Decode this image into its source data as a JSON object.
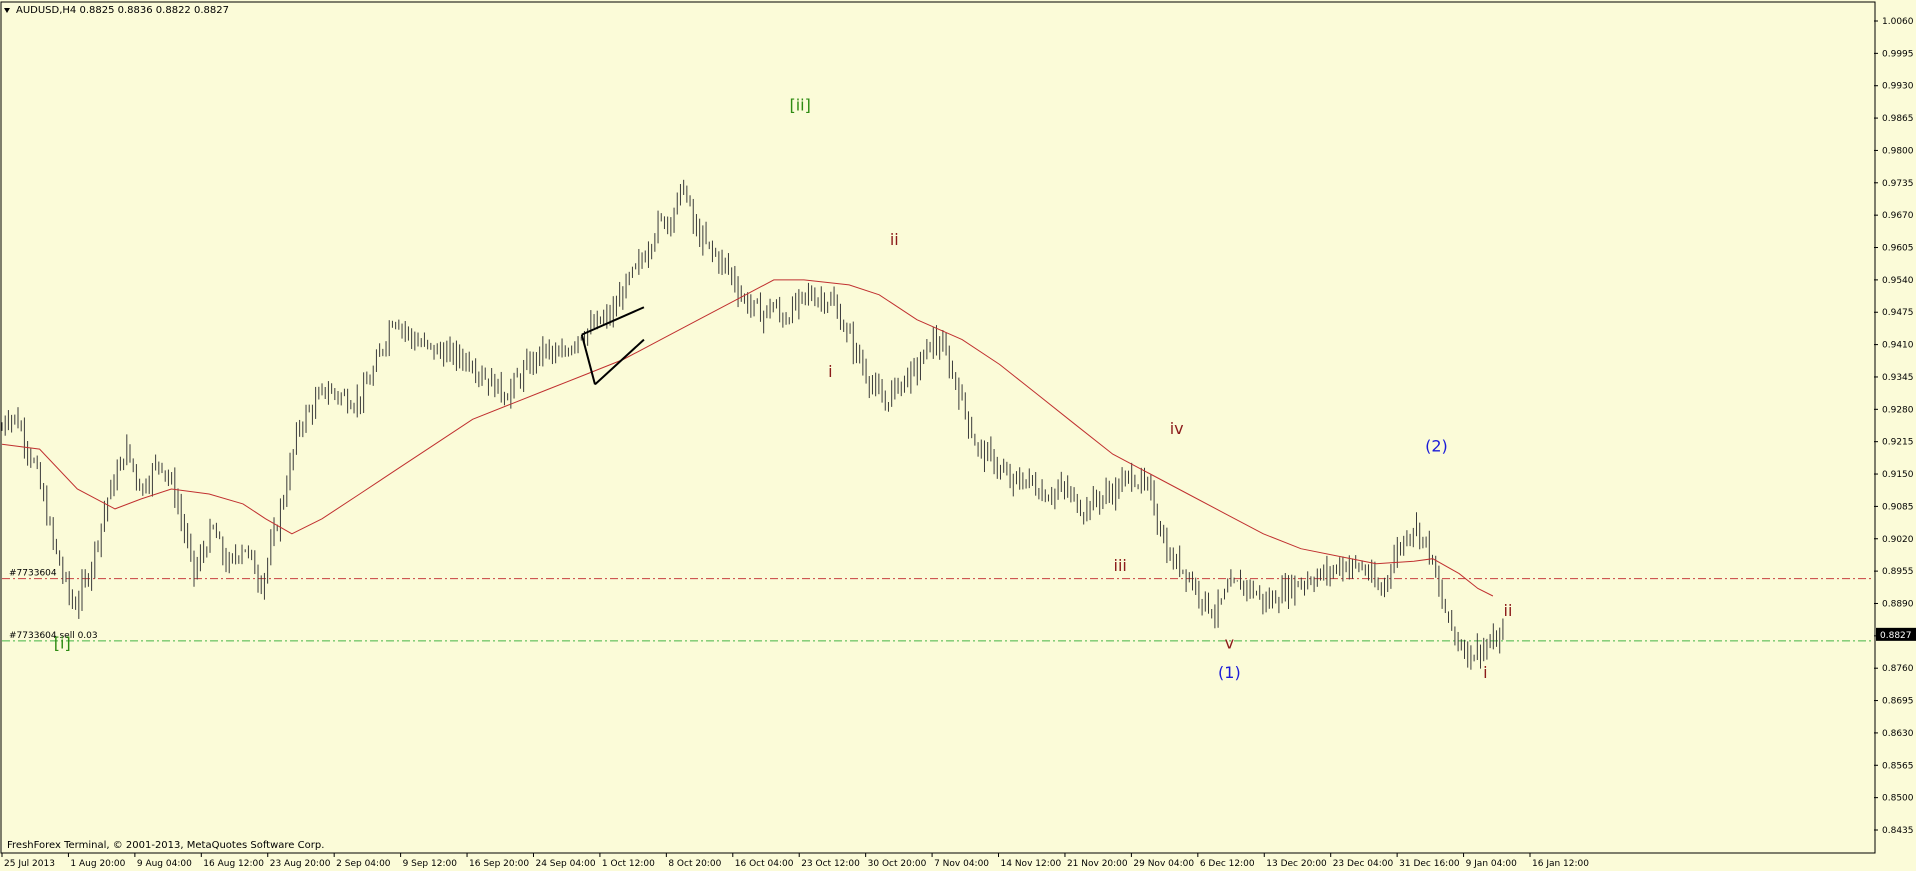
{
  "chart_data": {
    "type": "candlestick",
    "title": "AUDUSD,H4  0.8825 0.8836 0.8822 0.8827",
    "symbol": "AUDUSD,H4",
    "ohlc_header": [
      "0.8825",
      "0.8836",
      "0.8822",
      "0.8827"
    ],
    "current_price": "0.8827",
    "current_price_value": 0.8827,
    "ylim": [
      0.8435,
      1.006
    ],
    "y_ticks": [
      "1.0060",
      "0.9995",
      "0.9930",
      "0.9865",
      "0.9800",
      "0.9735",
      "0.9670",
      "0.9605",
      "0.9540",
      "0.9475",
      "0.9410",
      "0.9345",
      "0.9280",
      "0.9215",
      "0.9150",
      "0.9085",
      "0.9020",
      "0.8955",
      "0.8890",
      "0.8825",
      "0.8760",
      "0.8695",
      "0.8630",
      "0.8565",
      "0.8500",
      "0.8435"
    ],
    "x_ticks": [
      "25 Jul 2013",
      "1 Aug 20:00",
      "9 Aug 04:00",
      "16 Aug 12:00",
      "23 Aug 20:00",
      "2 Sep 04:00",
      "9 Sep 12:00",
      "16 Sep 20:00",
      "24 Sep 04:00",
      "1 Oct 12:00",
      "8 Oct 20:00",
      "16 Oct 04:00",
      "23 Oct 12:00",
      "30 Oct 20:00",
      "7 Nov 04:00",
      "14 Nov 12:00",
      "21 Nov 20:00",
      "29 Nov 04:00",
      "6 Dec 12:00",
      "13 Dec 20:00",
      "23 Dec 04:00",
      "31 Dec 16:00",
      "9 Jan 04:00",
      "16 Jan 12:00"
    ],
    "price_path": [
      [
        0,
        0.924
      ],
      [
        0.1,
        0.927
      ],
      [
        0.4,
        0.926
      ],
      [
        0.9,
        0.916
      ],
      [
        1.4,
        0.9
      ],
      [
        1.9,
        0.888
      ],
      [
        2.3,
        0.895
      ],
      [
        2.8,
        0.91
      ],
      [
        3.3,
        0.92
      ],
      [
        3.7,
        0.912
      ],
      [
        4.2,
        0.918
      ],
      [
        4.6,
        0.911
      ],
      [
        5.1,
        0.895
      ],
      [
        5.6,
        0.904
      ],
      [
        6.0,
        0.896
      ],
      [
        6.4,
        0.901
      ],
      [
        6.9,
        0.893
      ],
      [
        7.4,
        0.908
      ],
      [
        7.9,
        0.925
      ],
      [
        8.6,
        0.932
      ],
      [
        9.2,
        0.93
      ],
      [
        9.5,
        0.93
      ],
      [
        9.9,
        0.936
      ],
      [
        10.4,
        0.947
      ],
      [
        10.9,
        0.942
      ],
      [
        11.4,
        0.94
      ],
      [
        11.9,
        0.939
      ],
      [
        12.4,
        0.938
      ],
      [
        12.9,
        0.934
      ],
      [
        13.4,
        0.931
      ],
      [
        13.9,
        0.936
      ],
      [
        14.4,
        0.94
      ],
      [
        14.8,
        0.938
      ],
      [
        15.3,
        0.943
      ],
      [
        15.8,
        0.945
      ],
      [
        16.2,
        0.947
      ],
      [
        16.5,
        0.952
      ],
      [
        17.0,
        0.958
      ],
      [
        17.4,
        0.965
      ],
      [
        17.8,
        0.967
      ],
      [
        18.1,
        0.973
      ],
      [
        18.4,
        0.964
      ],
      [
        18.8,
        0.96
      ],
      [
        19.3,
        0.956
      ],
      [
        19.7,
        0.95
      ],
      [
        20.2,
        0.947
      ],
      [
        20.5,
        0.949
      ],
      [
        20.7,
        0.946
      ],
      [
        21.0,
        0.948
      ],
      [
        21.4,
        0.951
      ],
      [
        22.0,
        0.95
      ],
      [
        22.4,
        0.944
      ],
      [
        22.9,
        0.936
      ],
      [
        23.4,
        0.929
      ],
      [
        23.8,
        0.933
      ],
      [
        24.3,
        0.936
      ],
      [
        24.7,
        0.942
      ],
      [
        25.0,
        0.94
      ],
      [
        25.4,
        0.932
      ],
      [
        25.9,
        0.92
      ],
      [
        26.3,
        0.918
      ],
      [
        26.8,
        0.913
      ],
      [
        27.2,
        0.914
      ],
      [
        27.7,
        0.911
      ],
      [
        28.2,
        0.912
      ],
      [
        28.7,
        0.908
      ],
      [
        29.1,
        0.91
      ],
      [
        29.6,
        0.912
      ],
      [
        30.0,
        0.915
      ],
      [
        30.5,
        0.911
      ],
      [
        31.0,
        0.898
      ],
      [
        31.4,
        0.896
      ],
      [
        31.8,
        0.891
      ],
      [
        32.2,
        0.887
      ],
      [
        32.6,
        0.892
      ],
      [
        33.0,
        0.893
      ],
      [
        33.6,
        0.889
      ],
      [
        34.1,
        0.892
      ],
      [
        34.7,
        0.894
      ],
      [
        35.2,
        0.895
      ],
      [
        35.6,
        0.897
      ],
      [
        36.2,
        0.896
      ],
      [
        36.6,
        0.891
      ],
      [
        37.0,
        0.899
      ],
      [
        37.5,
        0.905
      ],
      [
        37.9,
        0.9
      ],
      [
        38.2,
        0.89
      ],
      [
        38.6,
        0.882
      ],
      [
        39.0,
        0.879
      ],
      [
        39.3,
        0.88
      ],
      [
        39.6,
        0.881
      ],
      [
        39.9,
        0.8827
      ]
    ],
    "ma_path": [
      [
        0,
        0.921
      ],
      [
        1.0,
        0.92
      ],
      [
        2.0,
        0.912
      ],
      [
        3.0,
        0.908
      ],
      [
        3.7,
        0.91
      ],
      [
        4.5,
        0.912
      ],
      [
        5.5,
        0.911
      ],
      [
        6.4,
        0.909
      ],
      [
        7.0,
        0.906
      ],
      [
        7.7,
        0.903
      ],
      [
        8.5,
        0.906
      ],
      [
        9.5,
        0.911
      ],
      [
        10.5,
        0.916
      ],
      [
        11.5,
        0.921
      ],
      [
        12.5,
        0.926
      ],
      [
        13.5,
        0.929
      ],
      [
        14.5,
        0.932
      ],
      [
        15.5,
        0.935
      ],
      [
        16.5,
        0.938
      ],
      [
        17.5,
        0.942
      ],
      [
        18.5,
        0.946
      ],
      [
        19.5,
        0.95
      ],
      [
        20.5,
        0.954
      ],
      [
        21.3,
        0.954
      ],
      [
        22.5,
        0.953
      ],
      [
        23.3,
        0.951
      ],
      [
        24.3,
        0.946
      ],
      [
        25.5,
        0.942
      ],
      [
        26.5,
        0.937
      ],
      [
        27.5,
        0.931
      ],
      [
        28.5,
        0.925
      ],
      [
        29.5,
        0.919
      ],
      [
        30.5,
        0.915
      ],
      [
        31.5,
        0.911
      ],
      [
        32.5,
        0.907
      ],
      [
        33.5,
        0.903
      ],
      [
        34.5,
        0.9
      ],
      [
        35.5,
        0.8985
      ],
      [
        36.5,
        0.897
      ],
      [
        37.5,
        0.8975
      ],
      [
        38.0,
        0.898
      ],
      [
        38.7,
        0.895
      ],
      [
        39.2,
        0.892
      ],
      [
        39.6,
        0.8905
      ]
    ],
    "channel_lines": [
      [
        [
          15.4,
          0.943
        ],
        [
          17.05,
          0.9485
        ]
      ],
      [
        [
          15.4,
          0.943
        ],
        [
          15.75,
          0.933
        ]
      ],
      [
        [
          15.75,
          0.933
        ],
        [
          17.05,
          0.942
        ]
      ]
    ],
    "horizontal_lines": [
      {
        "label": "#7733604",
        "value": 0.894,
        "color": "#c84040"
      },
      {
        "label": "#7733604 sell 0.03",
        "value": 0.8815,
        "color": "#45b545"
      }
    ],
    "wave_labels": [
      {
        "text": "[ii]",
        "x": 21.2,
        "y": 0.988,
        "color": "#2e8b12"
      },
      {
        "text": "[i]",
        "x": 1.6,
        "y": 0.88,
        "color": "#2e8b12"
      },
      {
        "text": "ii",
        "x": 23.7,
        "y": 0.961,
        "color": "#8b1a1a"
      },
      {
        "text": "i",
        "x": 22.0,
        "y": 0.9345,
        "color": "#8b1a1a"
      },
      {
        "text": "iii",
        "x": 29.7,
        "y": 0.8955,
        "color": "#8b1a1a"
      },
      {
        "text": "iv",
        "x": 31.2,
        "y": 0.923,
        "color": "#8b1a1a"
      },
      {
        "text": "v",
        "x": 32.6,
        "y": 0.88,
        "color": "#8b1a1a"
      },
      {
        "text": "(1)",
        "x": 32.6,
        "y": 0.874,
        "color": "#1b1bd8"
      },
      {
        "text": "(2)",
        "x": 38.1,
        "y": 0.9195,
        "color": "#1b1bd8"
      },
      {
        "text": "ii",
        "x": 40.0,
        "y": 0.8865,
        "color": "#8b1a1a"
      },
      {
        "text": "i",
        "x": 39.4,
        "y": 0.874,
        "color": "#8b1a1a"
      }
    ],
    "grid": false,
    "colors": {
      "background": "#fbfbd8",
      "bars": "#3a3a3a",
      "moving_average": "#c03030",
      "current_price_box": "#000000"
    }
  },
  "footer": {
    "copyright": "FreshForex Terminal, © 2001-2013, MetaQuotes Software Corp."
  }
}
